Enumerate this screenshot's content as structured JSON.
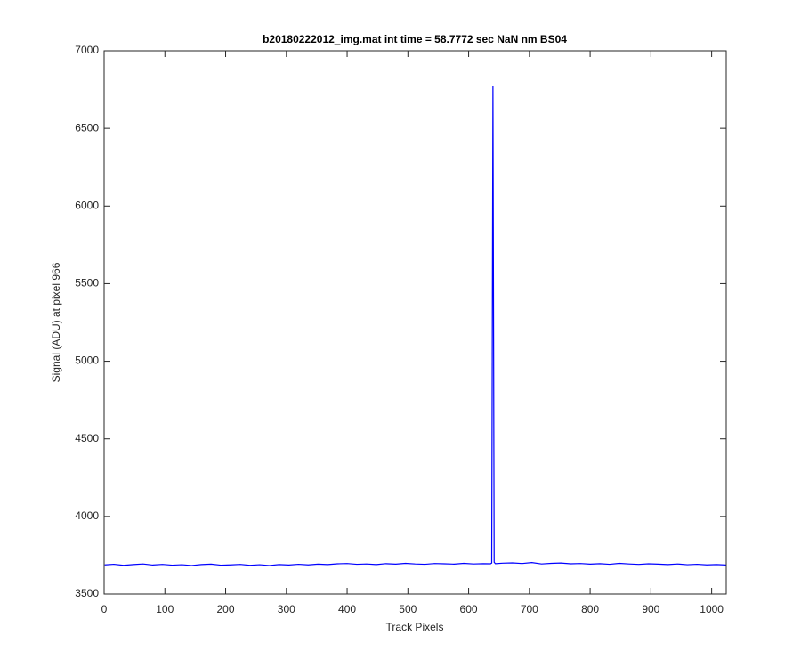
{
  "chart_data": {
    "type": "line",
    "title": "b20180222012_img.mat int time = 58.7772 sec  NaN nm BS04",
    "x_label": "Track Pixels",
    "y_label": "Signal (ADU) at pixel 966",
    "xlim": [
      0,
      1024
    ],
    "ylim": [
      3500,
      7000
    ],
    "xticks": [
      0,
      100,
      200,
      300,
      400,
      500,
      600,
      700,
      800,
      900,
      1000
    ],
    "yticks": [
      3500,
      4000,
      4500,
      5000,
      5500,
      6000,
      6500,
      7000
    ],
    "grid": false,
    "x": [
      1,
      16,
      32,
      48,
      64,
      80,
      96,
      112,
      128,
      144,
      160,
      176,
      192,
      208,
      224,
      240,
      256,
      272,
      288,
      304,
      320,
      336,
      352,
      368,
      384,
      400,
      416,
      432,
      448,
      464,
      480,
      496,
      512,
      528,
      544,
      560,
      576,
      592,
      608,
      624,
      636,
      638,
      640,
      642,
      644,
      656,
      672,
      688,
      704,
      720,
      736,
      752,
      768,
      784,
      800,
      816,
      832,
      848,
      864,
      880,
      896,
      912,
      928,
      944,
      960,
      976,
      992,
      1008,
      1024
    ],
    "series": [
      {
        "color": "#0000ff",
        "values": [
          3688,
          3692,
          3685,
          3690,
          3694,
          3687,
          3691,
          3686,
          3689,
          3684,
          3690,
          3693,
          3686,
          3688,
          3691,
          3685,
          3689,
          3684,
          3690,
          3687,
          3692,
          3688,
          3693,
          3690,
          3695,
          3697,
          3692,
          3694,
          3690,
          3696,
          3693,
          3698,
          3694,
          3692,
          3697,
          3695,
          3693,
          3698,
          3694,
          3696,
          3695,
          3700,
          6775,
          3705,
          3696,
          3699,
          3701,
          3697,
          3703,
          3694,
          3698,
          3700,
          3695,
          3697,
          3693,
          3696,
          3692,
          3698,
          3694,
          3691,
          3695,
          3693,
          3690,
          3694,
          3689,
          3692,
          3688,
          3690,
          3687
        ]
      }
    ]
  }
}
